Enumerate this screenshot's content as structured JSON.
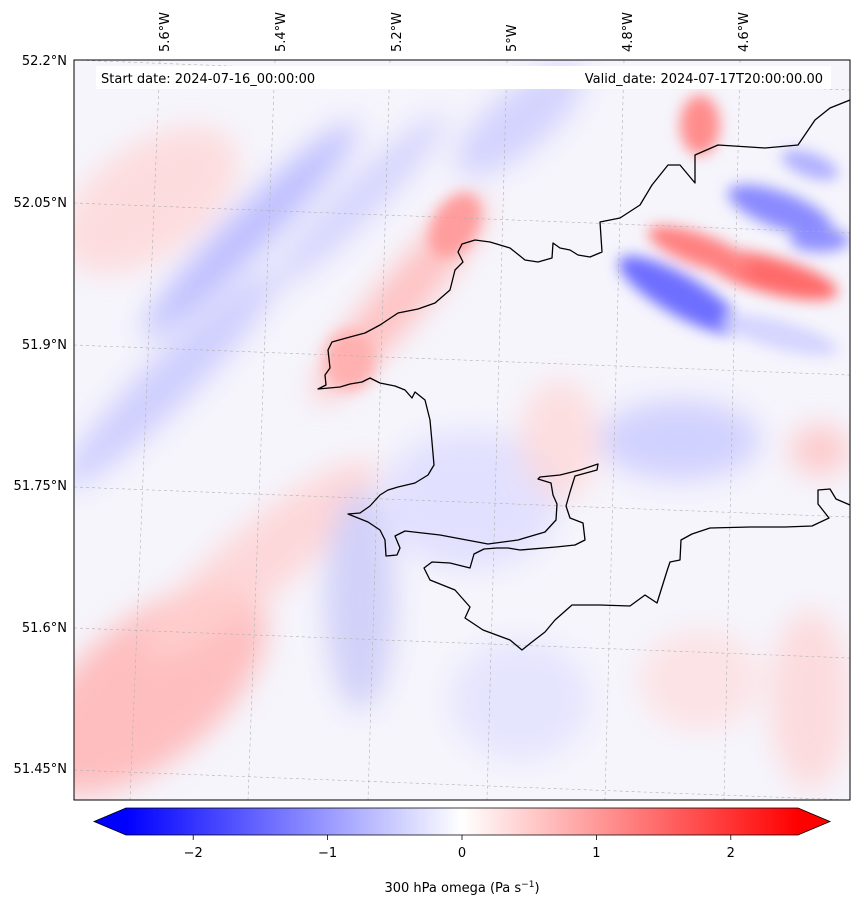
{
  "map": {
    "start_label": "Start date: 2024-07-16_00:00:00",
    "valid_label": "Valid_date: 2024-07-17T20:00:00.00",
    "lon_ticks": [
      "5.6°W",
      "5.4°W",
      "5.2°W",
      "5°W",
      "4.8°W",
      "4.6°W"
    ],
    "lat_ticks": [
      "52.2°N",
      "52.05°N",
      "51.9°N",
      "51.75°N",
      "51.6°N",
      "51.45°N"
    ],
    "colors": {
      "negative": "#0000ff",
      "neutral": "#ffffff",
      "positive": "#ff0000",
      "coastline": "#000000",
      "gridline": "#b0b0b0"
    }
  },
  "colorbar": {
    "ticks": [
      "−2",
      "−1",
      "0",
      "1",
      "2"
    ],
    "tick_values": [
      -2,
      -1,
      0,
      1,
      2
    ],
    "range": [
      -2.5,
      2.5
    ],
    "label_main": "300 hPa omega (Pa s",
    "label_sup": "−1",
    "label_end": ")"
  }
}
